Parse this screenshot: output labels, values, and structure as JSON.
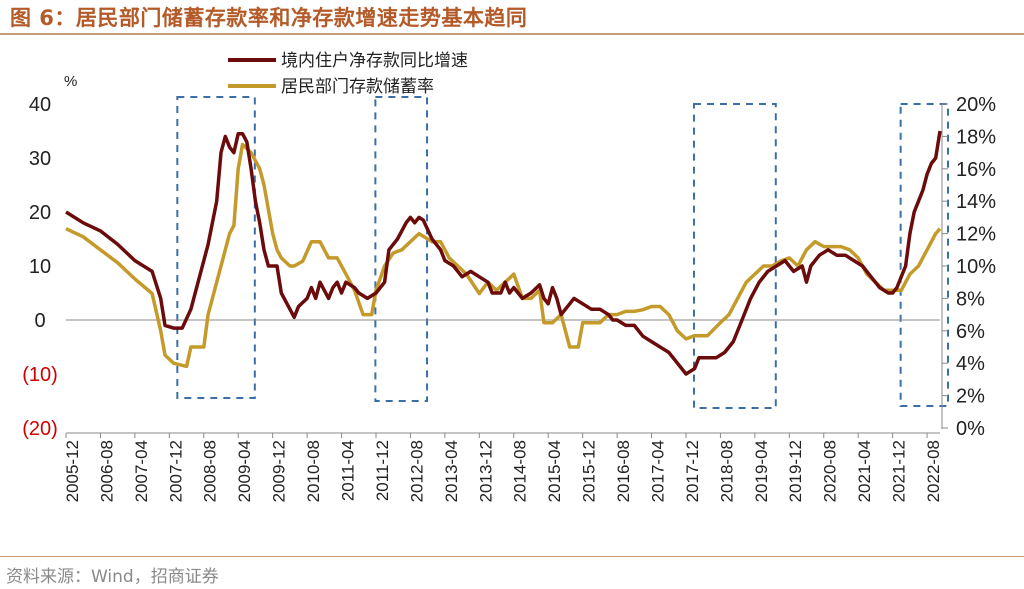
{
  "title": "图 6：居民部门储蓄存款率和净存款增速走势基本趋同",
  "source": "资料来源：Wind，招商证券",
  "chart_data": {
    "type": "line",
    "left_unit": "%",
    "left_axis": {
      "min": -20,
      "max": 40,
      "ticks": [
        {
          "v": 40,
          "label": "40"
        },
        {
          "v": 30,
          "label": "30"
        },
        {
          "v": 20,
          "label": "20"
        },
        {
          "v": 10,
          "label": "10"
        },
        {
          "v": 0,
          "label": "0"
        },
        {
          "v": -10,
          "label": "(10)"
        },
        {
          "v": -20,
          "label": "(20)"
        }
      ]
    },
    "right_axis": {
      "min": 0,
      "max": 20,
      "ticks": [
        {
          "v": 20,
          "label": "20%"
        },
        {
          "v": 18,
          "label": "18%"
        },
        {
          "v": 16,
          "label": "16%"
        },
        {
          "v": 14,
          "label": "14%"
        },
        {
          "v": 12,
          "label": "12%"
        },
        {
          "v": 10,
          "label": "10%"
        },
        {
          "v": 8,
          "label": "8%"
        },
        {
          "v": 6,
          "label": "6%"
        },
        {
          "v": 4,
          "label": "4%"
        },
        {
          "v": 2,
          "label": "2%"
        },
        {
          "v": 0,
          "label": "0%"
        }
      ]
    },
    "x_ticks": [
      "2005-12",
      "2006-08",
      "2007-04",
      "2007-12",
      "2008-08",
      "2009-04",
      "2009-12",
      "2010-08",
      "2011-04",
      "2011-12",
      "2012-08",
      "2013-04",
      "2013-12",
      "2014-08",
      "2015-04",
      "2015-12",
      "2016-08",
      "2017-04",
      "2017-12",
      "2018-08",
      "2019-04",
      "2019-12",
      "2020-08",
      "2021-04",
      "2021-12",
      "2022-08"
    ],
    "x_range": [
      "2005-12",
      "2022-11"
    ],
    "series": [
      {
        "name": "境内住户净存款同比增速",
        "axis": "left",
        "color": "#6b0b0b",
        "points": [
          [
            "2005-12",
            20
          ],
          [
            "2006-04",
            18
          ],
          [
            "2006-08",
            16.5
          ],
          [
            "2006-12",
            14
          ],
          [
            "2007-04",
            11
          ],
          [
            "2007-08",
            9
          ],
          [
            "2007-10",
            4
          ],
          [
            "2007-11",
            -1
          ],
          [
            "2008-01",
            -1.5
          ],
          [
            "2008-03",
            -1.5
          ],
          [
            "2008-05",
            2
          ],
          [
            "2008-07",
            8
          ],
          [
            "2008-09",
            14
          ],
          [
            "2008-11",
            22
          ],
          [
            "2008-12",
            31
          ],
          [
            "2009-01",
            34
          ],
          [
            "2009-02",
            32
          ],
          [
            "2009-03",
            31
          ],
          [
            "2009-04",
            34.5
          ],
          [
            "2009-05",
            34.5
          ],
          [
            "2009-06",
            33
          ],
          [
            "2009-07",
            28
          ],
          [
            "2009-08",
            22
          ],
          [
            "2009-09",
            18
          ],
          [
            "2009-10",
            13
          ],
          [
            "2009-11",
            10
          ],
          [
            "2010-01",
            10
          ],
          [
            "2010-02",
            5
          ],
          [
            "2010-04",
            2
          ],
          [
            "2010-05",
            0.5
          ],
          [
            "2010-06",
            2.5
          ],
          [
            "2010-08",
            4
          ],
          [
            "2010-09",
            6
          ],
          [
            "2010-10",
            4
          ],
          [
            "2010-11",
            7
          ],
          [
            "2011-01",
            4
          ],
          [
            "2011-02",
            6
          ],
          [
            "2011-03",
            7
          ],
          [
            "2011-04",
            5
          ],
          [
            "2011-05",
            7
          ],
          [
            "2011-07",
            6
          ],
          [
            "2011-08",
            5
          ],
          [
            "2011-10",
            4
          ],
          [
            "2011-12",
            5
          ],
          [
            "2012-02",
            7
          ],
          [
            "2012-03",
            13
          ],
          [
            "2012-05",
            15
          ],
          [
            "2012-07",
            18
          ],
          [
            "2012-08",
            19
          ],
          [
            "2012-09",
            18
          ],
          [
            "2012-10",
            19
          ],
          [
            "2012-11",
            18.5
          ],
          [
            "2013-01",
            15
          ],
          [
            "2013-03",
            13
          ],
          [
            "2013-04",
            11
          ],
          [
            "2013-06",
            10
          ],
          [
            "2013-08",
            8
          ],
          [
            "2013-10",
            9
          ],
          [
            "2013-12",
            8
          ],
          [
            "2014-02",
            7
          ],
          [
            "2014-03",
            5
          ],
          [
            "2014-05",
            5
          ],
          [
            "2014-06",
            7
          ],
          [
            "2014-07",
            5
          ],
          [
            "2014-08",
            6
          ],
          [
            "2014-09",
            5
          ],
          [
            "2014-10",
            4
          ],
          [
            "2014-12",
            5
          ],
          [
            "2015-02",
            6.5
          ],
          [
            "2015-03",
            4
          ],
          [
            "2015-04",
            3
          ],
          [
            "2015-05",
            6
          ],
          [
            "2015-06",
            4
          ],
          [
            "2015-07",
            1
          ],
          [
            "2015-09",
            3
          ],
          [
            "2015-10",
            4
          ],
          [
            "2015-12",
            3
          ],
          [
            "2016-02",
            2
          ],
          [
            "2016-04",
            2
          ],
          [
            "2016-06",
            1
          ],
          [
            "2016-07",
            0
          ],
          [
            "2016-08",
            0
          ],
          [
            "2016-10",
            -1
          ],
          [
            "2016-12",
            -1
          ],
          [
            "2017-02",
            -3
          ],
          [
            "2017-04",
            -4
          ],
          [
            "2017-06",
            -5
          ],
          [
            "2017-08",
            -6
          ],
          [
            "2017-10",
            -8
          ],
          [
            "2017-12",
            -10
          ],
          [
            "2018-02",
            -9
          ],
          [
            "2018-03",
            -7
          ],
          [
            "2018-05",
            -7
          ],
          [
            "2018-07",
            -7
          ],
          [
            "2018-09",
            -6
          ],
          [
            "2018-11",
            -4
          ],
          [
            "2019-01",
            0
          ],
          [
            "2019-03",
            4
          ],
          [
            "2019-05",
            7
          ],
          [
            "2019-07",
            9
          ],
          [
            "2019-09",
            10
          ],
          [
            "2019-11",
            11
          ],
          [
            "2020-01",
            9
          ],
          [
            "2020-03",
            10
          ],
          [
            "2020-04",
            7
          ],
          [
            "2020-05",
            10
          ],
          [
            "2020-07",
            12
          ],
          [
            "2020-09",
            13
          ],
          [
            "2020-11",
            12
          ],
          [
            "2021-01",
            12
          ],
          [
            "2021-03",
            11
          ],
          [
            "2021-05",
            10
          ],
          [
            "2021-07",
            8
          ],
          [
            "2021-09",
            6
          ],
          [
            "2021-11",
            5
          ],
          [
            "2021-12",
            5
          ],
          [
            "2022-01",
            6
          ],
          [
            "2022-03",
            10
          ],
          [
            "2022-04",
            16
          ],
          [
            "2022-05",
            20
          ],
          [
            "2022-06",
            22
          ],
          [
            "2022-07",
            24
          ],
          [
            "2022-08",
            27
          ],
          [
            "2022-09",
            29
          ],
          [
            "2022-10",
            30
          ],
          [
            "2022-11",
            35
          ]
        ]
      },
      {
        "name": "居民部门存款储蓄率",
        "axis": "right",
        "color": "#c49a2a",
        "points": [
          [
            "2005-12",
            12.3
          ],
          [
            "2006-04",
            11.8
          ],
          [
            "2006-08",
            11
          ],
          [
            "2006-12",
            10.2
          ],
          [
            "2007-04",
            9.2
          ],
          [
            "2007-08",
            8.3
          ],
          [
            "2007-10",
            6
          ],
          [
            "2007-11",
            4.5
          ],
          [
            "2008-01",
            4
          ],
          [
            "2008-04",
            3.8
          ],
          [
            "2008-05",
            5
          ],
          [
            "2008-08",
            5
          ],
          [
            "2008-09",
            7
          ],
          [
            "2008-10",
            8
          ],
          [
            "2008-12",
            10
          ],
          [
            "2009-02",
            12
          ],
          [
            "2009-03",
            12.5
          ],
          [
            "2009-04",
            16
          ],
          [
            "2009-05",
            17.5
          ],
          [
            "2009-07",
            17
          ],
          [
            "2009-09",
            16
          ],
          [
            "2009-10",
            15
          ],
          [
            "2009-12",
            12
          ],
          [
            "2010-01",
            11
          ],
          [
            "2010-02",
            10.5
          ],
          [
            "2010-04",
            10
          ],
          [
            "2010-05",
            10
          ],
          [
            "2010-07",
            10.3
          ],
          [
            "2010-09",
            11.5
          ],
          [
            "2010-11",
            11.5
          ],
          [
            "2011-01",
            10.5
          ],
          [
            "2011-03",
            10.5
          ],
          [
            "2011-05",
            9.5
          ],
          [
            "2011-07",
            8.5
          ],
          [
            "2011-09",
            7
          ],
          [
            "2011-11",
            7
          ],
          [
            "2011-12",
            8.5
          ],
          [
            "2012-02",
            10
          ],
          [
            "2012-04",
            10.8
          ],
          [
            "2012-06",
            11
          ],
          [
            "2012-08",
            11.5
          ],
          [
            "2012-10",
            12
          ],
          [
            "2013-01",
            11.5
          ],
          [
            "2013-03",
            11.5
          ],
          [
            "2013-05",
            10.5
          ],
          [
            "2013-07",
            10
          ],
          [
            "2013-09",
            9.5
          ],
          [
            "2013-12",
            8.3
          ],
          [
            "2014-02",
            9
          ],
          [
            "2014-04",
            8.5
          ],
          [
            "2014-06",
            9
          ],
          [
            "2014-08",
            9.5
          ],
          [
            "2014-10",
            8
          ],
          [
            "2014-12",
            8
          ],
          [
            "2015-02",
            8.5
          ],
          [
            "2015-03",
            6.5
          ],
          [
            "2015-05",
            6.5
          ],
          [
            "2015-07",
            7
          ],
          [
            "2015-09",
            5
          ],
          [
            "2015-11",
            5
          ],
          [
            "2015-12",
            6.5
          ],
          [
            "2016-02",
            6.5
          ],
          [
            "2016-04",
            6.5
          ],
          [
            "2016-06",
            7
          ],
          [
            "2016-08",
            7
          ],
          [
            "2016-10",
            7.2
          ],
          [
            "2016-12",
            7.2
          ],
          [
            "2017-02",
            7.3
          ],
          [
            "2017-04",
            7.5
          ],
          [
            "2017-06",
            7.5
          ],
          [
            "2017-08",
            7
          ],
          [
            "2017-10",
            6
          ],
          [
            "2017-12",
            5.5
          ],
          [
            "2018-02",
            5.7
          ],
          [
            "2018-05",
            5.7
          ],
          [
            "2018-08",
            6.5
          ],
          [
            "2018-10",
            7
          ],
          [
            "2018-12",
            8
          ],
          [
            "2019-02",
            9
          ],
          [
            "2019-04",
            9.5
          ],
          [
            "2019-06",
            10
          ],
          [
            "2019-08",
            10
          ],
          [
            "2019-10",
            10.3
          ],
          [
            "2019-12",
            10.5
          ],
          [
            "2020-02",
            10
          ],
          [
            "2020-04",
            11
          ],
          [
            "2020-06",
            11.5
          ],
          [
            "2020-08",
            11.2
          ],
          [
            "2020-10",
            11.2
          ],
          [
            "2020-12",
            11.2
          ],
          [
            "2021-02",
            11
          ],
          [
            "2021-04",
            10.5
          ],
          [
            "2021-06",
            9.5
          ],
          [
            "2021-08",
            9
          ],
          [
            "2021-10",
            8.5
          ],
          [
            "2021-12",
            8.5
          ],
          [
            "2022-02",
            8.5
          ],
          [
            "2022-04",
            9.5
          ],
          [
            "2022-06",
            10
          ],
          [
            "2022-08",
            11
          ],
          [
            "2022-10",
            12
          ],
          [
            "2022-11",
            12.3
          ]
        ]
      }
    ],
    "highlight_ranges": [
      {
        "from": "2007-12",
        "to": "2009-06"
      },
      {
        "from": "2011-10",
        "to": "2012-10"
      },
      {
        "from": "2017-12",
        "to": "2019-07"
      },
      {
        "from": "2021-12",
        "to": "2022-11"
      }
    ]
  }
}
